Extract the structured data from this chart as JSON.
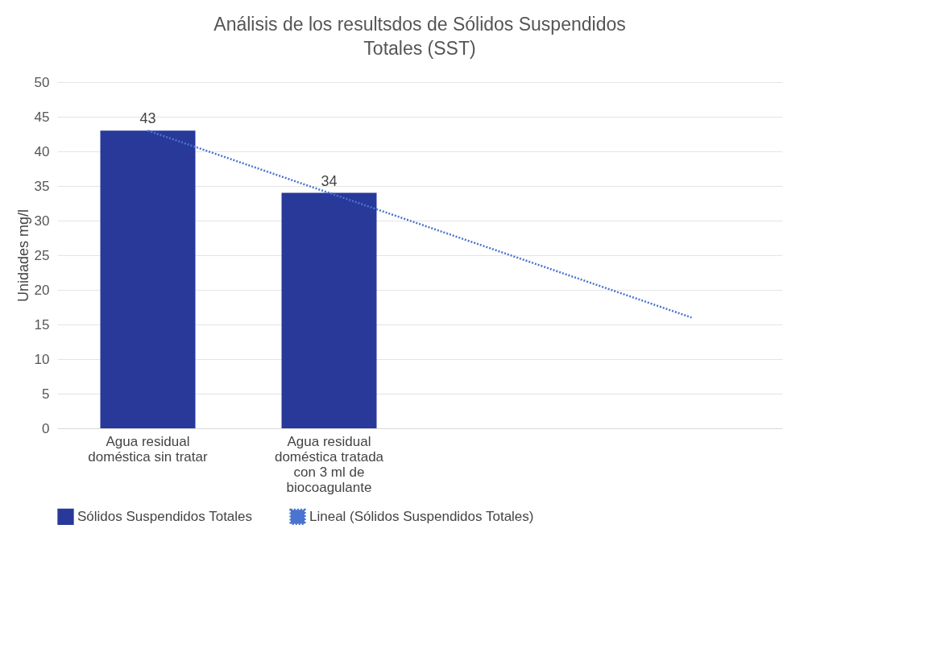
{
  "chart_data": {
    "type": "bar",
    "title": "Análisis de los resultsdos de Sólidos Suspendidos Totales (SST)",
    "ylabel": "Unidades mg/l",
    "categories": [
      "Agua residual doméstica sin tratar",
      "Agua residual doméstica tratada con 3 ml de biocoagulante",
      null,
      null
    ],
    "series": [
      {
        "name": "Sólidos Suspendidos Totales",
        "color": "#28399a",
        "values": [
          43,
          34,
          null,
          null
        ],
        "value_labels": [
          "43",
          "34",
          null,
          null
        ]
      },
      {
        "name": "Lineal (Sólidos Suspendidos Totales)",
        "type": "line",
        "line_style": "dotted",
        "marker": "none",
        "color": "#4a74d0",
        "values": [
          43,
          34,
          25,
          16
        ]
      }
    ],
    "ylim": [
      0,
      50
    ],
    "yticks": [
      0,
      5,
      10,
      15,
      20,
      25,
      30,
      35,
      40,
      45,
      50
    ],
    "grid": "y",
    "legend": "bottom"
  }
}
